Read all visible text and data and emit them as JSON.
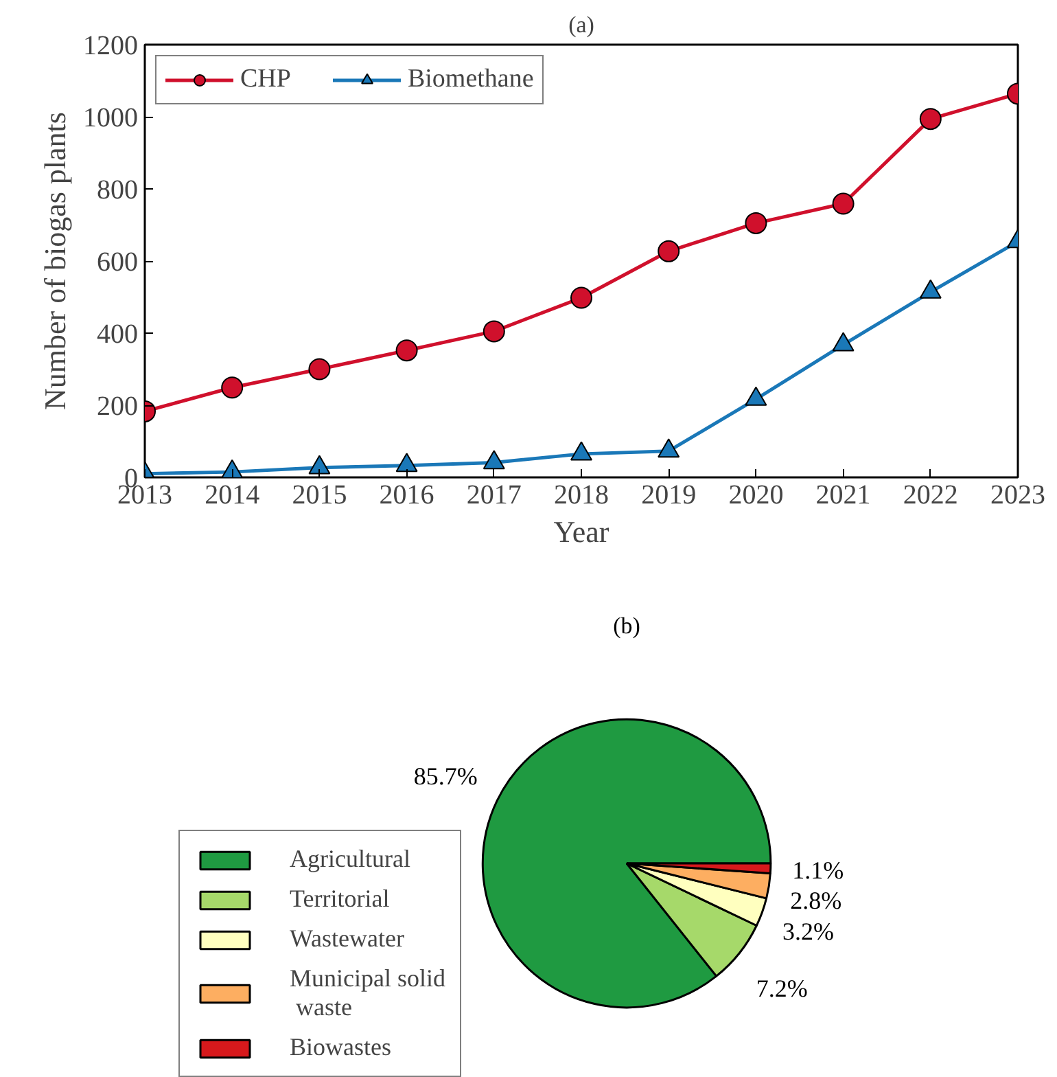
{
  "chart_data": [
    {
      "type": "line",
      "title": "(a)",
      "xlabel": "Year",
      "ylabel": "Number of biogas plants",
      "x": [
        2013,
        2014,
        2015,
        2016,
        2017,
        2018,
        2019,
        2020,
        2021,
        2022,
        2023
      ],
      "series": [
        {
          "name": "CHP",
          "color": "#d0102c",
          "marker": "circle",
          "values": [
            183,
            249,
            300,
            352,
            405,
            498,
            627,
            705,
            759,
            994,
            1064
          ]
        },
        {
          "name": "Biomethane",
          "color": "#1a78b8",
          "marker": "triangle",
          "values": [
            10,
            15,
            27,
            33,
            41,
            65,
            73,
            217,
            368,
            514,
            654
          ]
        }
      ],
      "xlim": [
        2013,
        2023
      ],
      "xticks": [
        2013,
        2014,
        2015,
        2016,
        2017,
        2018,
        2019,
        2020,
        2021,
        2022,
        2023
      ],
      "ylim": [
        0,
        1200
      ],
      "yticks": [
        0,
        200,
        400,
        600,
        800,
        1000,
        1200
      ],
      "grid": false,
      "legend": "top left",
      "line_style": "solid"
    },
    {
      "type": "pie",
      "title": "(b)",
      "categories": [
        "Agricultural",
        "Territorial",
        "Wastewater",
        "Municipal solid\n waste",
        "Biowastes"
      ],
      "values": [
        85.7,
        7.2,
        3.2,
        2.8,
        1.1
      ],
      "value_labels": [
        "85.7%",
        "7.2%",
        "3.2%",
        "2.8%",
        "1.1%"
      ],
      "colors": [
        "#1f9a41",
        "#a6d96a",
        "#ffffbf",
        "#fdae61",
        "#d7191c"
      ],
      "legend": "left"
    }
  ]
}
